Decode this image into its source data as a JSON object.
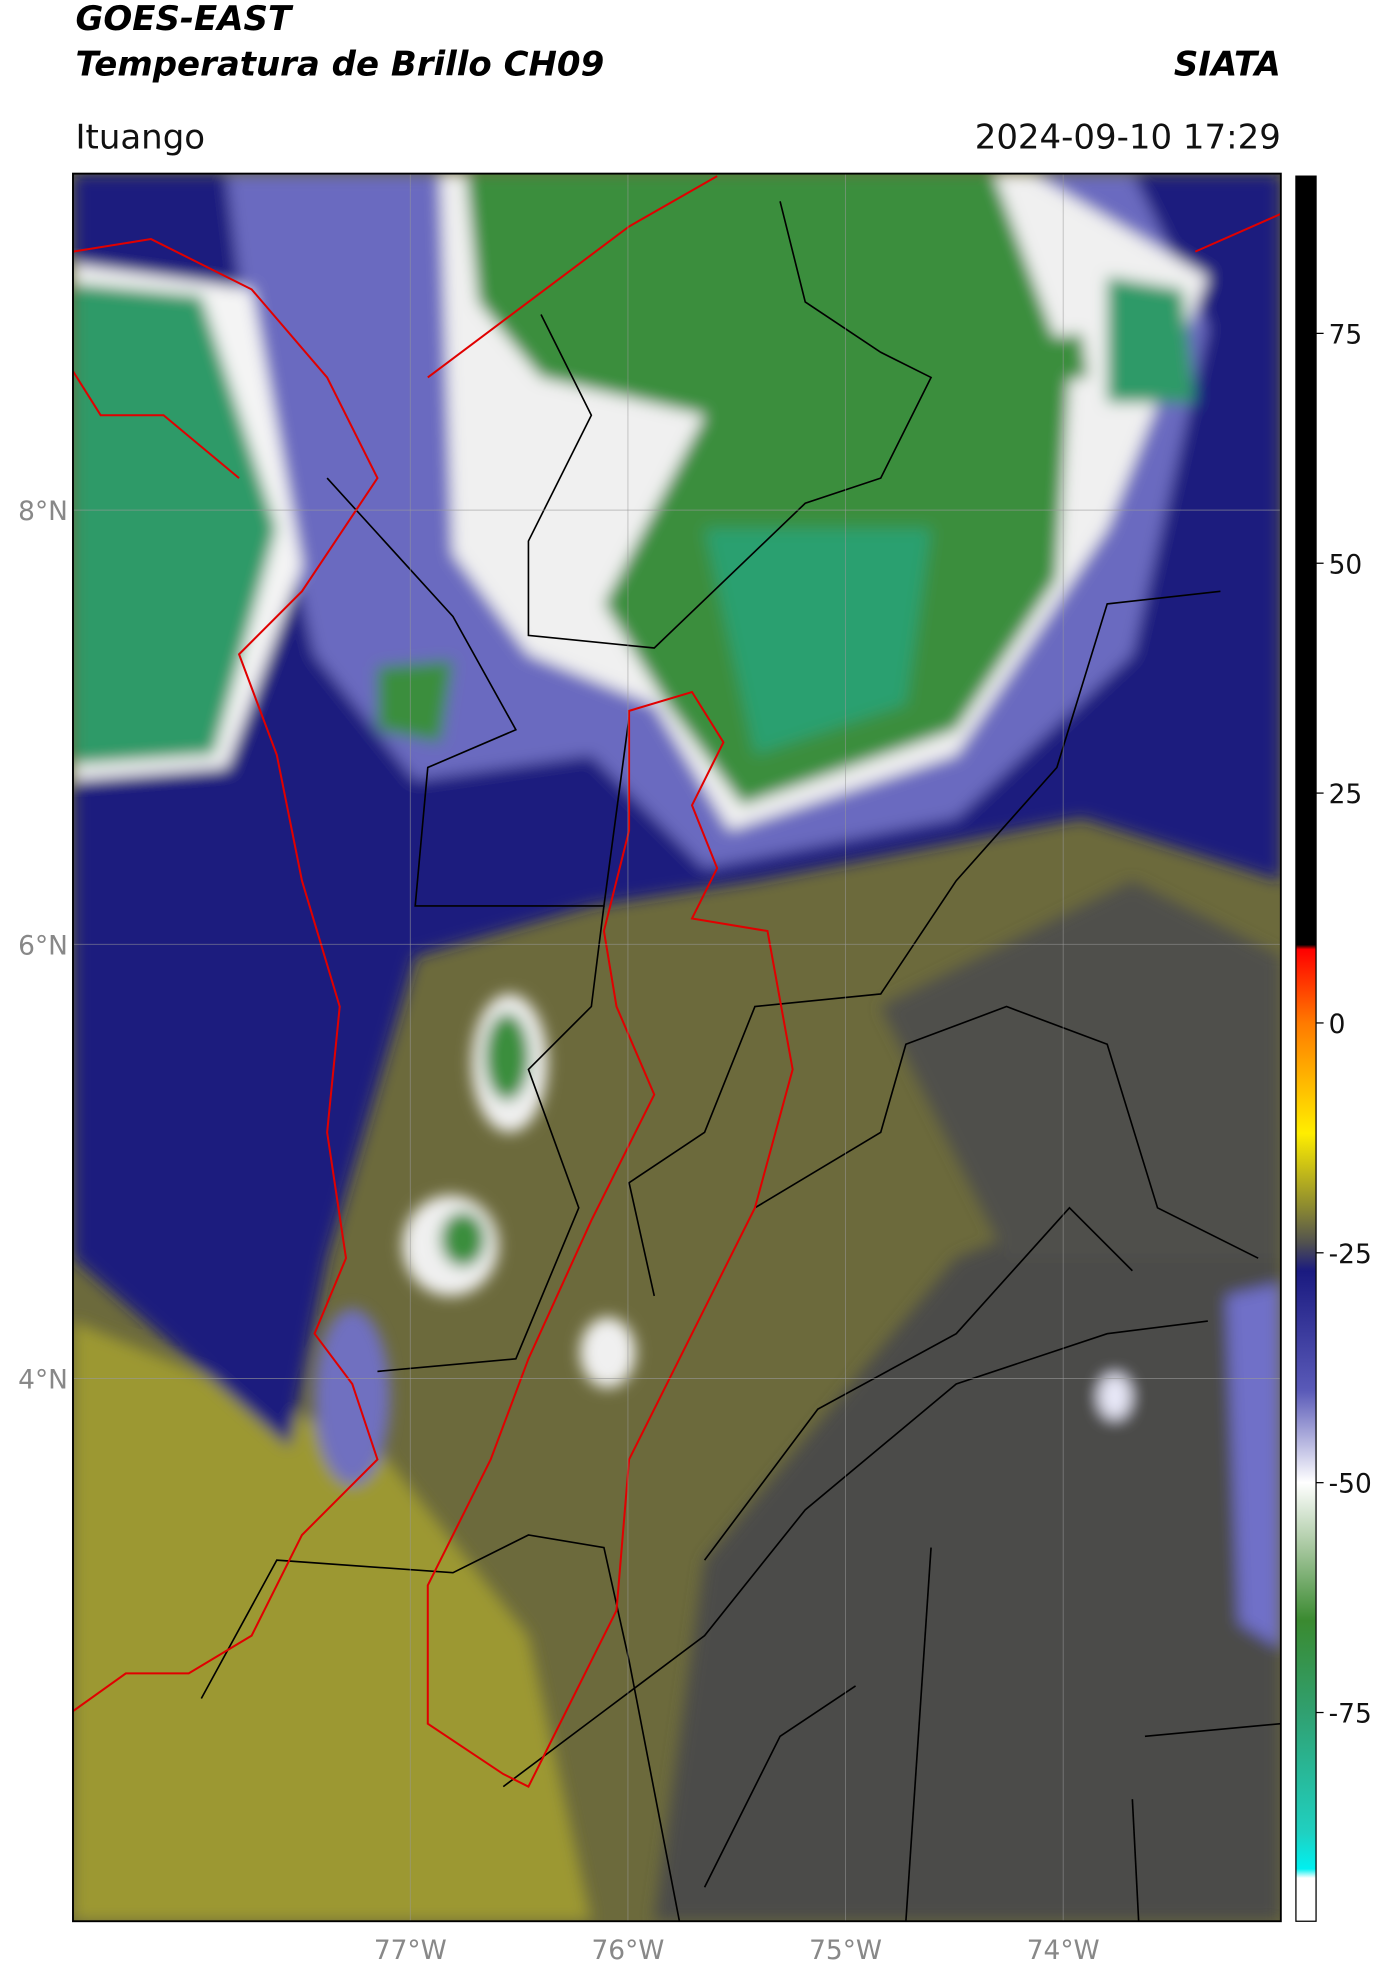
{
  "header": {
    "title": "GOES-EAST",
    "subtitle": "Temperatura de Brillo CH09",
    "brand": "SIATA",
    "location": "Ituango",
    "timestamp": "2024-09-10 17:29"
  },
  "map": {
    "lonlim": [
      -78.55,
      -73.0
    ],
    "latlim": [
      1.5,
      9.55
    ],
    "lat_ticks": [
      {
        "value": 8,
        "label": "8°N"
      },
      {
        "value": 6,
        "label": "6°N"
      },
      {
        "value": 4,
        "label": "4°N"
      }
    ],
    "lon_ticks": [
      {
        "value": -77,
        "label": "77°W"
      },
      {
        "value": -76,
        "label": "76°W"
      },
      {
        "value": -75,
        "label": "75°W"
      },
      {
        "value": -74,
        "label": "74°W"
      }
    ],
    "grid": true
  },
  "colorbar": {
    "lim": [
      -97.7,
      92.1
    ],
    "ticks": [
      75,
      50,
      25,
      0,
      -25,
      -50,
      -75
    ],
    "stops": [
      {
        "value": 92.1,
        "color": "#000000"
      },
      {
        "value": 8.5,
        "color": "#000000"
      },
      {
        "value": 8,
        "color": "#ff0000"
      },
      {
        "value": 0,
        "color": "#ff7a00"
      },
      {
        "value": -12,
        "color": "#ffee00"
      },
      {
        "value": -20,
        "color": "#8c8a30"
      },
      {
        "value": -24,
        "color": "#505050"
      },
      {
        "value": -27,
        "color": "#1a1a80"
      },
      {
        "value": -40,
        "color": "#5a5ab8"
      },
      {
        "value": -50,
        "color": "#ffffff"
      },
      {
        "value": -57,
        "color": "#a8c8a0"
      },
      {
        "value": -65,
        "color": "#3a8a30"
      },
      {
        "value": -75,
        "color": "#30a070"
      },
      {
        "value": -88,
        "color": "#20d0c0"
      },
      {
        "value": -92,
        "color": "#00f0f0"
      },
      {
        "value": -93,
        "color": "#ffffff"
      },
      {
        "value": -97.7,
        "color": "#ffffff"
      }
    ]
  }
}
